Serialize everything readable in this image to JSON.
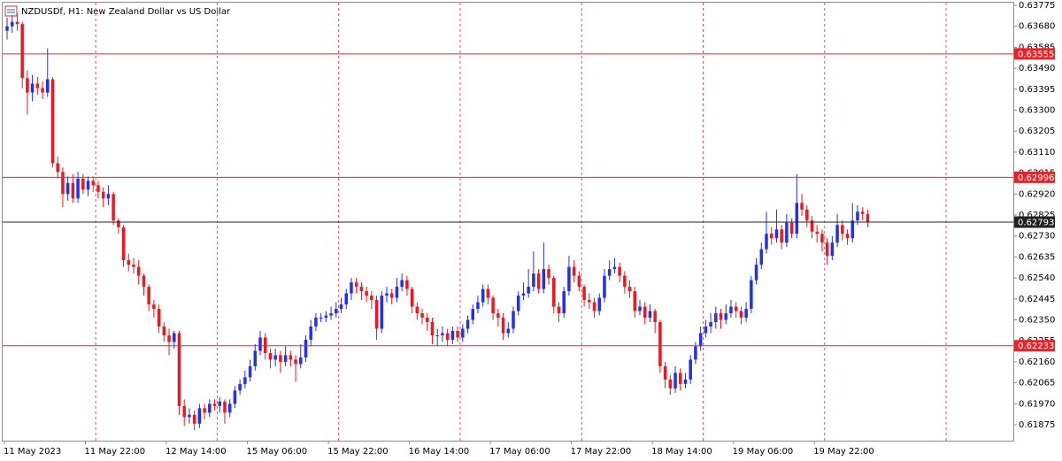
{
  "chart_data": {
    "type": "candlestick",
    "title": "NZDUSDf, H1:  New Zealand Dollar vs US Dollar",
    "up_color": "#1f2ff5",
    "down_color": "#f5141c",
    "ylim": [
      0.61803,
      0.63799
    ],
    "yticks": [
      0.63775,
      {
        "value": 0.6368,
        "label": "0.63680"
      },
      0.63585,
      {
        "value": 0.6349,
        "label": "0.63490"
      },
      0.63395,
      {
        "value": 0.633,
        "label": "0.63300"
      },
      0.63205,
      {
        "value": 0.6311,
        "label": "0.63110"
      },
      0.63015,
      {
        "value": 0.6292,
        "label": "0.62920"
      },
      0.62825,
      {
        "value": 0.6273,
        "label": "0.62730"
      },
      0.62635,
      {
        "value": 0.6254,
        "label": "0.62540"
      },
      0.62445,
      {
        "value": 0.6235,
        "label": "0.62350"
      },
      0.62255,
      {
        "value": 0.6216,
        "label": "0.62160"
      },
      0.62065,
      {
        "value": 0.6197,
        "label": "0.61970"
      },
      0.61875
    ],
    "price_lines": [
      {
        "value": 0.63555,
        "color": "#e8242a"
      },
      {
        "value": 0.62996,
        "color": "#e8242a"
      },
      {
        "value": 0.62793,
        "color": "#222222"
      },
      {
        "value": 0.62233,
        "color": "#e8242a"
      }
    ],
    "period_separators": true,
    "categories": [
      "11 May 2023",
      null,
      null,
      null,
      null,
      null,
      null,
      null,
      null,
      null,
      null,
      null,
      null,
      null,
      null,
      null,
      "11 May 22:00",
      null,
      null,
      null,
      null,
      null,
      null,
      null,
      null,
      null,
      null,
      null,
      null,
      null,
      null,
      null,
      "12 May 14:00",
      null,
      null,
      null,
      null,
      null,
      null,
      null,
      null,
      null,
      null,
      null,
      null,
      null,
      null,
      null,
      "15 May 06:00",
      null,
      null,
      null,
      null,
      null,
      null,
      null,
      null,
      null,
      null,
      null,
      null,
      null,
      null,
      null,
      "15 May 22:00",
      null,
      null,
      null,
      null,
      null,
      null,
      null,
      null,
      null,
      null,
      null,
      null,
      null,
      null,
      null,
      "16 May 14:00",
      null,
      null,
      null,
      null,
      null,
      null,
      null,
      null,
      null,
      null,
      null,
      null,
      null,
      null,
      null,
      "17 May 06:00",
      null,
      null,
      null,
      null,
      null,
      null,
      null,
      null,
      null,
      null,
      null,
      null,
      null,
      null,
      null,
      "17 May 22:00",
      null,
      null,
      null,
      null,
      null,
      null,
      null,
      null,
      null,
      null,
      null,
      null,
      null,
      null,
      null,
      "18 May 14:00",
      null,
      null,
      null,
      null,
      null,
      null,
      null,
      null,
      null,
      null,
      null,
      null,
      null,
      null,
      null,
      "19 May 06:00",
      null,
      null,
      null,
      null,
      null,
      null,
      null,
      null,
      null,
      null,
      null,
      null,
      null,
      null,
      null,
      "19 May 22:00",
      null,
      null,
      null,
      null,
      null,
      null,
      null,
      null,
      null,
      null
    ],
    "open": [
      0.6366,
      0.6368,
      0.637,
      0.6369,
      0.63445,
      0.6338,
      0.6342,
      0.634,
      0.6338,
      0.6344,
      0.6306,
      0.6302,
      0.6292,
      0.6297,
      0.629,
      0.6299,
      0.6294,
      0.6298,
      0.6296,
      0.6293,
      0.629,
      0.6292,
      0.628,
      0.6277,
      0.6262,
      0.626,
      0.6259,
      0.6255,
      0.625,
      0.6242,
      0.624,
      0.6232,
      0.6228,
      0.6225,
      0.6229,
      0.6196,
      0.6191,
      0.6192,
      0.6188,
      0.6195,
      0.6193,
      0.6197,
      0.6196,
      0.6198,
      0.6193,
      0.6197,
      0.6203,
      0.6206,
      0.6209,
      0.6214,
      0.6221,
      0.6227,
      0.622,
      0.6217,
      0.6219,
      0.6216,
      0.6219,
      0.6217,
      0.6215,
      0.6218,
      0.6226,
      0.6232,
      0.6236,
      0.6236,
      0.6237,
      0.6238,
      0.624,
      0.6242,
      0.6247,
      0.6252,
      0.625,
      0.6248,
      0.6246,
      0.6244,
      0.6231,
      0.6246,
      0.6247,
      0.6245,
      0.625,
      0.6253,
      0.6249,
      0.6241,
      0.6238,
      0.6236,
      0.6234,
      0.6228,
      0.6228,
      0.6229,
      0.6226,
      0.623,
      0.6227,
      0.6231,
      0.6235,
      0.624,
      0.6243,
      0.6249,
      0.6245,
      0.6238,
      0.6236,
      0.6229,
      0.6231,
      0.6239,
      0.6246,
      0.6247,
      0.625,
      0.6256,
      0.6249,
      0.6258,
      0.6254,
      0.6241,
      0.6238,
      0.6248,
      0.6259,
      0.6255,
      0.625,
      0.6244,
      0.6243,
      0.6239,
      0.6245,
      0.6255,
      0.6258,
      0.6259,
      0.6255,
      0.625,
      0.6248,
      0.6239,
      0.6241,
      0.6236,
      0.6239,
      0.6234,
      0.6214,
      0.6208,
      0.6204,
      0.6211,
      0.6206,
      0.6208,
      0.6217,
      0.6223,
      0.6229,
      0.6232,
      0.6234,
      0.6238,
      0.6235,
      0.6238,
      0.6241,
      0.6239,
      0.6236,
      0.624,
      0.6253,
      0.626,
      0.6267,
      0.6274,
      0.6272,
      0.6276,
      0.627,
      0.6279,
      0.6274,
      0.6288,
      0.6285,
      0.628,
      0.6275,
      0.6274,
      0.627,
      0.6264,
      0.627,
      0.6278,
      0.6274,
      0.6272,
      0.628,
      0.6284,
      0.6283
    ],
    "high": [
      0.6372,
      0.6373,
      0.6374,
      0.637,
      0.6348,
      0.6346,
      0.6345,
      0.6343,
      0.6358,
      0.6345,
      0.6309,
      0.6304,
      0.63,
      0.6301,
      0.6302,
      0.6301,
      0.63,
      0.63,
      0.6298,
      0.6295,
      0.6296,
      0.6293,
      0.6281,
      0.6278,
      0.6265,
      0.6263,
      0.6262,
      0.6256,
      0.6251,
      0.6244,
      0.6242,
      0.6234,
      0.6231,
      0.623,
      0.623,
      0.6199,
      0.6195,
      0.6194,
      0.6197,
      0.6197,
      0.6199,
      0.6199,
      0.62,
      0.6199,
      0.6199,
      0.6205,
      0.6208,
      0.6212,
      0.6217,
      0.6224,
      0.623,
      0.6229,
      0.6222,
      0.6222,
      0.6221,
      0.6223,
      0.6221,
      0.6219,
      0.6224,
      0.6228,
      0.6235,
      0.6238,
      0.6238,
      0.6239,
      0.6241,
      0.6243,
      0.6245,
      0.6249,
      0.6254,
      0.6254,
      0.6252,
      0.625,
      0.6248,
      0.6246,
      0.6248,
      0.625,
      0.6249,
      0.6254,
      0.6256,
      0.6255,
      0.625,
      0.6243,
      0.624,
      0.6238,
      0.6236,
      0.6231,
      0.6232,
      0.6231,
      0.6232,
      0.6232,
      0.6233,
      0.6237,
      0.6242,
      0.6246,
      0.6251,
      0.6251,
      0.6246,
      0.624,
      0.6238,
      0.6234,
      0.6241,
      0.6248,
      0.6252,
      0.6258,
      0.6266,
      0.6258,
      0.627,
      0.626,
      0.6255,
      0.6243,
      0.625,
      0.6264,
      0.6262,
      0.6257,
      0.6251,
      0.6247,
      0.6245,
      0.6247,
      0.6258,
      0.6262,
      0.6263,
      0.6261,
      0.6257,
      0.6253,
      0.625,
      0.6244,
      0.6243,
      0.6242,
      0.624,
      0.6235,
      0.6216,
      0.621,
      0.6214,
      0.6213,
      0.6211,
      0.6219,
      0.6225,
      0.6232,
      0.6235,
      0.6238,
      0.6241,
      0.624,
      0.6242,
      0.6244,
      0.6243,
      0.6241,
      0.6243,
      0.6255,
      0.6263,
      0.627,
      0.6284,
      0.6277,
      0.6285,
      0.6278,
      0.6283,
      0.6281,
      0.6301,
      0.6292,
      0.6287,
      0.6282,
      0.6278,
      0.6276,
      0.6272,
      0.6273,
      0.6283,
      0.628,
      0.6276,
      0.6288,
      0.6287,
      0.6286,
      0.6285
    ],
    "low": [
      0.6362,
      0.6365,
      0.6366,
      0.634,
      0.6328,
      0.6334,
      0.6337,
      0.6335,
      0.6336,
      0.6304,
      0.6299,
      0.6286,
      0.6289,
      0.6288,
      0.6288,
      0.6292,
      0.6291,
      0.6293,
      0.629,
      0.6286,
      0.6287,
      0.6278,
      0.6274,
      0.6259,
      0.6257,
      0.6256,
      0.6251,
      0.6246,
      0.6239,
      0.6236,
      0.6229,
      0.6225,
      0.6219,
      0.6222,
      0.6192,
      0.6187,
      0.6188,
      0.6185,
      0.6186,
      0.619,
      0.6191,
      0.6194,
      0.6193,
      0.6188,
      0.6191,
      0.6195,
      0.6201,
      0.6204,
      0.6207,
      0.6212,
      0.6219,
      0.6217,
      0.6213,
      0.6214,
      0.6211,
      0.6214,
      0.6214,
      0.6207,
      0.6213,
      0.6216,
      0.6223,
      0.623,
      0.6234,
      0.6234,
      0.6235,
      0.6236,
      0.6238,
      0.624,
      0.6244,
      0.6247,
      0.6244,
      0.6243,
      0.624,
      0.6226,
      0.6229,
      0.6243,
      0.6242,
      0.6243,
      0.6248,
      0.6246,
      0.6238,
      0.6235,
      0.6233,
      0.623,
      0.6224,
      0.6223,
      0.6225,
      0.6223,
      0.6224,
      0.6225,
      0.6225,
      0.6229,
      0.6233,
      0.6238,
      0.6241,
      0.6242,
      0.6235,
      0.6232,
      0.6226,
      0.6227,
      0.6229,
      0.6237,
      0.6244,
      0.6245,
      0.6248,
      0.6247,
      0.6247,
      0.6251,
      0.6238,
      0.6234,
      0.6236,
      0.6246,
      0.6252,
      0.6248,
      0.6241,
      0.624,
      0.6236,
      0.6237,
      0.6243,
      0.6253,
      0.6256,
      0.6252,
      0.6247,
      0.6245,
      0.6236,
      0.6237,
      0.6233,
      0.6234,
      0.6229,
      0.6211,
      0.6204,
      0.6201,
      0.6202,
      0.6203,
      0.6204,
      0.6206,
      0.6215,
      0.6221,
      0.6227,
      0.6229,
      0.6231,
      0.6231,
      0.6233,
      0.6236,
      0.6236,
      0.6233,
      0.6234,
      0.6238,
      0.6251,
      0.6258,
      0.6265,
      0.6269,
      0.627,
      0.6267,
      0.6268,
      0.6272,
      0.6272,
      0.6282,
      0.6277,
      0.6272,
      0.627,
      0.6266,
      0.626,
      0.6262,
      0.6268,
      0.6271,
      0.6269,
      0.627,
      0.6278,
      0.628,
      0.6277
    ],
    "close": [
      0.6368,
      0.637,
      0.6369,
      0.63445,
      0.6338,
      0.6342,
      0.634,
      0.6338,
      0.6344,
      0.6306,
      0.6302,
      0.6292,
      0.6297,
      0.629,
      0.6299,
      0.6294,
      0.6298,
      0.6296,
      0.6293,
      0.629,
      0.6292,
      0.628,
      0.6277,
      0.6262,
      0.626,
      0.6259,
      0.6255,
      0.625,
      0.6242,
      0.624,
      0.6232,
      0.6228,
      0.6225,
      0.6229,
      0.6196,
      0.6191,
      0.6192,
      0.6188,
      0.6195,
      0.6193,
      0.6197,
      0.6196,
      0.6198,
      0.6193,
      0.6197,
      0.6203,
      0.6206,
      0.6209,
      0.6214,
      0.6221,
      0.6227,
      0.622,
      0.6217,
      0.6219,
      0.6216,
      0.6219,
      0.6217,
      0.6215,
      0.6218,
      0.6226,
      0.6232,
      0.6236,
      0.6236,
      0.6237,
      0.6238,
      0.624,
      0.6242,
      0.6247,
      0.6252,
      0.625,
      0.6248,
      0.6246,
      0.6244,
      0.6231,
      0.6246,
      0.6247,
      0.6245,
      0.625,
      0.6253,
      0.6249,
      0.6241,
      0.6238,
      0.6236,
      0.6234,
      0.6228,
      0.6228,
      0.6229,
      0.6226,
      0.623,
      0.6227,
      0.6231,
      0.6235,
      0.624,
      0.6243,
      0.6249,
      0.6245,
      0.6238,
      0.6236,
      0.6229,
      0.6231,
      0.6239,
      0.6246,
      0.6247,
      0.625,
      0.6256,
      0.6249,
      0.6258,
      0.6254,
      0.6241,
      0.6238,
      0.6248,
      0.6259,
      0.6255,
      0.625,
      0.6244,
      0.6243,
      0.6239,
      0.6245,
      0.6255,
      0.6258,
      0.6259,
      0.6255,
      0.625,
      0.6248,
      0.6239,
      0.6241,
      0.6236,
      0.6239,
      0.6234,
      0.6214,
      0.6208,
      0.6204,
      0.6211,
      0.6206,
      0.6208,
      0.6217,
      0.6223,
      0.6229,
      0.6232,
      0.6234,
      0.6238,
      0.6235,
      0.6238,
      0.6241,
      0.6239,
      0.6236,
      0.624,
      0.6253,
      0.626,
      0.6267,
      0.6274,
      0.6272,
      0.6276,
      0.627,
      0.6279,
      0.6274,
      0.6288,
      0.6285,
      0.628,
      0.6275,
      0.6274,
      0.627,
      0.6264,
      0.627,
      0.6278,
      0.6274,
      0.6272,
      0.628,
      0.6284,
      0.6283,
      0.62793
    ]
  }
}
